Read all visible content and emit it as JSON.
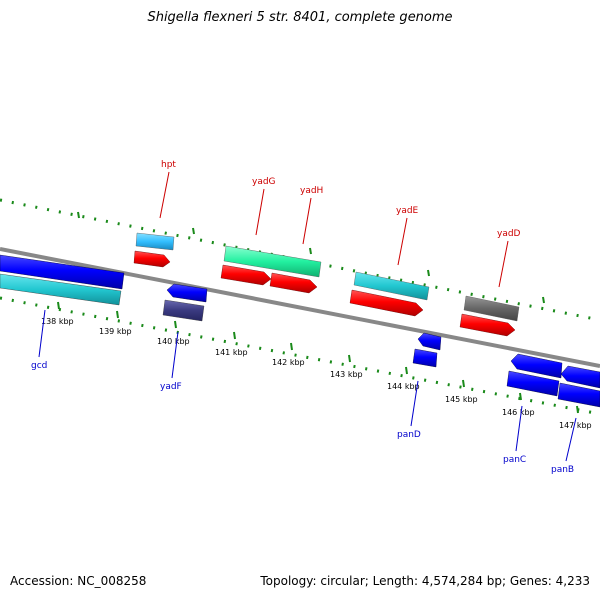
{
  "header": {
    "title": "Shigella flexneri 5 str. 8401, complete genome"
  },
  "footer": {
    "accession": "Accession: NC_008258",
    "summary": "Topology: circular; Length: 4,574,284 bp; Genes: 4,233"
  },
  "scale": {
    "ticks": [
      "138 kbp",
      "139 kbp",
      "140 kbp",
      "141 kbp",
      "142 kbp",
      "143 kbp",
      "144 kbp",
      "145 kbp",
      "146 kbp",
      "147 kbp"
    ]
  },
  "genes_forward": [
    {
      "name": "hpt",
      "color": "#ff0000"
    },
    {
      "name": "yadG",
      "color": "#ff0000"
    },
    {
      "name": "yadH",
      "color": "#ff0000"
    },
    {
      "name": "yadE",
      "color": "#ff0000"
    },
    {
      "name": "yadD",
      "color": "#ff0000"
    }
  ],
  "genes_reverse": [
    {
      "name": "gcd",
      "color": "#0000ff"
    },
    {
      "name": "yadF",
      "color": "#0000ff"
    },
    {
      "name": "panD",
      "color": "#0000ff"
    },
    {
      "name": "panC",
      "color": "#0000ff"
    },
    {
      "name": "panB",
      "color": "#0000ff"
    }
  ],
  "legend_colors": {
    "forward_cds": "#ff0000",
    "reverse_cds": "#0000ff",
    "feature_cyan": "#22c7d0",
    "feature_green": "#22f0a0",
    "feature_grey": "#666666",
    "feature_navy": "#3a3a80",
    "feature_skyblue": "#33bfff",
    "backbone": "#888888",
    "tick_green": "#1a8a1a"
  }
}
